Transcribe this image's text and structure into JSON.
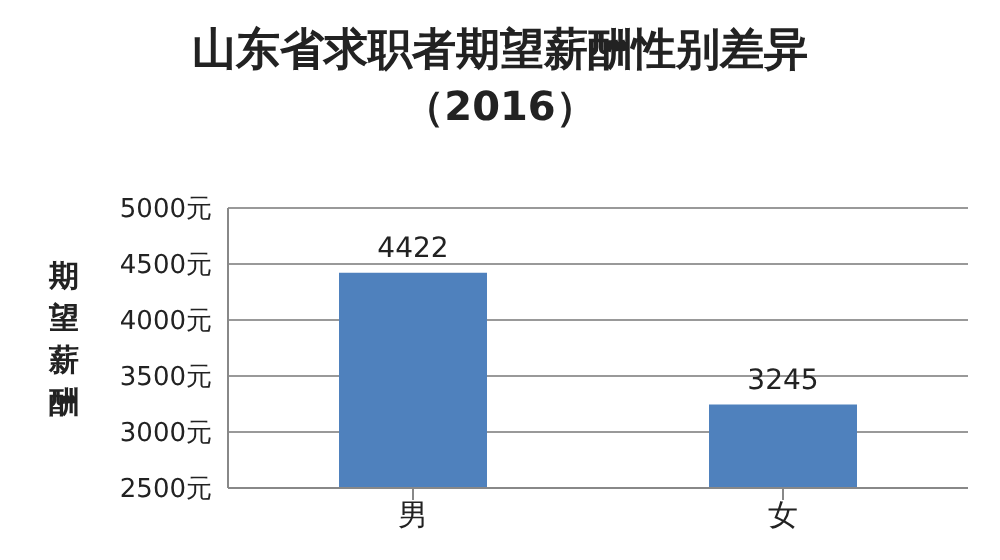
{
  "chart_data": {
    "type": "bar",
    "title": "山东省求职者期望薪酬性别差异",
    "subtitle": "（2016）",
    "ylabel": "期望薪酬",
    "categories": [
      "男",
      "女"
    ],
    "values": [
      4422,
      3245
    ],
    "color": "#4f81bd",
    "ylim": [
      2500,
      5000
    ],
    "yticks": [
      {
        "value": 2500,
        "label": "2500元"
      },
      {
        "value": 3000,
        "label": "3000元"
      },
      {
        "value": 3500,
        "label": "3500元"
      },
      {
        "value": 4000,
        "label": "4000元"
      },
      {
        "value": 4500,
        "label": "4500元"
      },
      {
        "value": 5000,
        "label": "5000元"
      }
    ],
    "grid": "y",
    "data_labels": true
  }
}
